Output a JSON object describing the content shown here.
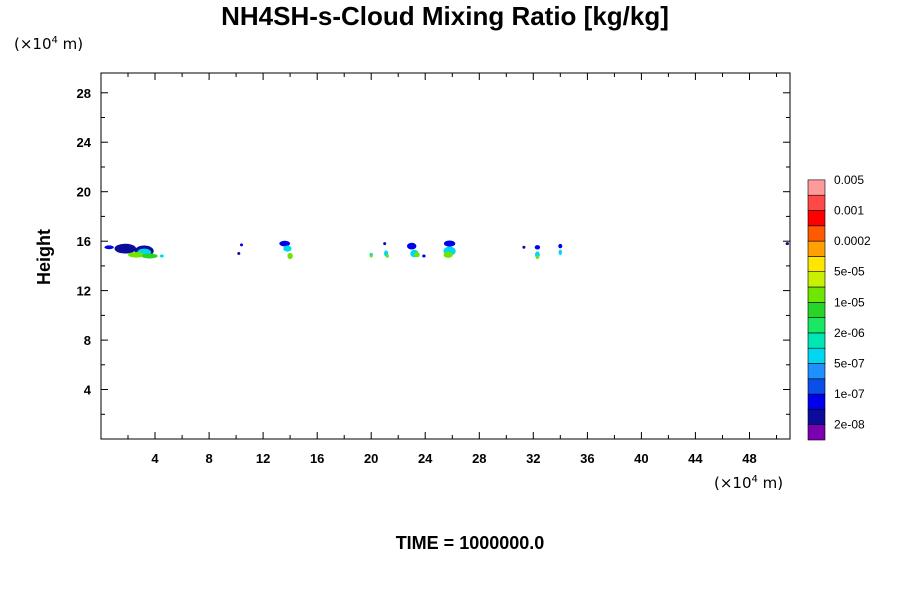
{
  "chart_data": {
    "type": "heatmap",
    "title": "NH4SH-s-Cloud Mixing Ratio [kg/kg]",
    "ylabel": "Height",
    "xlabel": "",
    "x_unit": {
      "prefix": "(×10",
      "exp": "4",
      "suffix": " m)"
    },
    "y_unit": {
      "prefix": "(×10",
      "exp": "4",
      "suffix": " m)"
    },
    "footer": "TIME = 1000000.0",
    "xlim": [
      0,
      51
    ],
    "ylim": [
      0,
      29.6
    ],
    "x_ticks": [
      4,
      8,
      12,
      16,
      20,
      24,
      28,
      32,
      36,
      40,
      44,
      48
    ],
    "y_ticks": [
      4,
      8,
      12,
      16,
      20,
      24,
      28
    ],
    "x_minor_step": 2,
    "y_minor_step": 2,
    "grid": false,
    "legend": {
      "placement": "right",
      "colors": [
        "#7a00b0",
        "#0c0c9a",
        "#0000ee",
        "#0a50e8",
        "#1e90ff",
        "#00d8f0",
        "#00e6b4",
        "#18e864",
        "#28d428",
        "#70e600",
        "#c8f000",
        "#ffe600",
        "#ffa000",
        "#ff5a00",
        "#ff0000",
        "#ff4848",
        "#ff9a9a"
      ],
      "labels": [
        "2e-08",
        "1e-07",
        "5e-07",
        "2e-06",
        "1e-05",
        "5e-05",
        "0.0002",
        "0.001",
        "0.005"
      ]
    },
    "clouds": [
      {
        "x": 0.6,
        "y": 15.5,
        "w": 0.7,
        "h": 0.3,
        "level": 2
      },
      {
        "x": 1.8,
        "y": 15.4,
        "w": 1.6,
        "h": 0.8,
        "level": 1
      },
      {
        "x": 3.2,
        "y": 15.2,
        "w": 1.4,
        "h": 0.9,
        "level": 1
      },
      {
        "x": 3.2,
        "y": 15.1,
        "w": 1.0,
        "h": 0.6,
        "level": 5
      },
      {
        "x": 2.6,
        "y": 14.9,
        "w": 1.2,
        "h": 0.45,
        "level": 9
      },
      {
        "x": 3.6,
        "y": 14.8,
        "w": 1.2,
        "h": 0.4,
        "level": 8
      },
      {
        "x": 4.5,
        "y": 14.8,
        "w": 0.3,
        "h": 0.25,
        "level": 5
      },
      {
        "x": 10.4,
        "y": 15.7,
        "w": 0.1,
        "h": 0.2,
        "level": 2
      },
      {
        "x": 10.2,
        "y": 15.0,
        "w": 0.15,
        "h": 0.25,
        "level": 1
      },
      {
        "x": 13.6,
        "y": 15.8,
        "w": 0.8,
        "h": 0.45,
        "level": 2
      },
      {
        "x": 13.8,
        "y": 15.4,
        "w": 0.6,
        "h": 0.5,
        "level": 5
      },
      {
        "x": 14.0,
        "y": 14.8,
        "w": 0.4,
        "h": 0.5,
        "level": 9
      },
      {
        "x": 20.0,
        "y": 14.9,
        "w": 0.25,
        "h": 0.3,
        "level": 5
      },
      {
        "x": 20.0,
        "y": 14.8,
        "w": 0.15,
        "h": 0.2,
        "level": 9
      },
      {
        "x": 21.0,
        "y": 15.8,
        "w": 0.15,
        "h": 0.25,
        "level": 1
      },
      {
        "x": 21.1,
        "y": 15.0,
        "w": 0.3,
        "h": 0.5,
        "level": 5
      },
      {
        "x": 21.2,
        "y": 14.8,
        "w": 0.2,
        "h": 0.3,
        "level": 9
      },
      {
        "x": 23.0,
        "y": 15.6,
        "w": 0.7,
        "h": 0.55,
        "level": 2
      },
      {
        "x": 23.2,
        "y": 15.0,
        "w": 0.6,
        "h": 0.6,
        "level": 5
      },
      {
        "x": 23.4,
        "y": 14.9,
        "w": 0.4,
        "h": 0.4,
        "level": 9
      },
      {
        "x": 23.9,
        "y": 14.8,
        "w": 0.25,
        "h": 0.25,
        "level": 2
      },
      {
        "x": 25.8,
        "y": 15.8,
        "w": 0.85,
        "h": 0.5,
        "level": 2
      },
      {
        "x": 25.8,
        "y": 15.2,
        "w": 0.9,
        "h": 0.75,
        "level": 5
      },
      {
        "x": 25.7,
        "y": 14.9,
        "w": 0.7,
        "h": 0.5,
        "level": 9
      },
      {
        "x": 31.3,
        "y": 15.5,
        "w": 0.15,
        "h": 0.2,
        "level": 1
      },
      {
        "x": 32.3,
        "y": 15.5,
        "w": 0.4,
        "h": 0.35,
        "level": 2
      },
      {
        "x": 32.3,
        "y": 14.9,
        "w": 0.35,
        "h": 0.55,
        "level": 5
      },
      {
        "x": 32.3,
        "y": 14.7,
        "w": 0.2,
        "h": 0.3,
        "level": 9
      },
      {
        "x": 34.0,
        "y": 15.6,
        "w": 0.3,
        "h": 0.35,
        "level": 2
      },
      {
        "x": 34.0,
        "y": 15.1,
        "w": 0.25,
        "h": 0.45,
        "level": 5
      },
      {
        "x": 50.8,
        "y": 15.8,
        "w": 0.25,
        "h": 0.15,
        "level": 1
      }
    ]
  }
}
